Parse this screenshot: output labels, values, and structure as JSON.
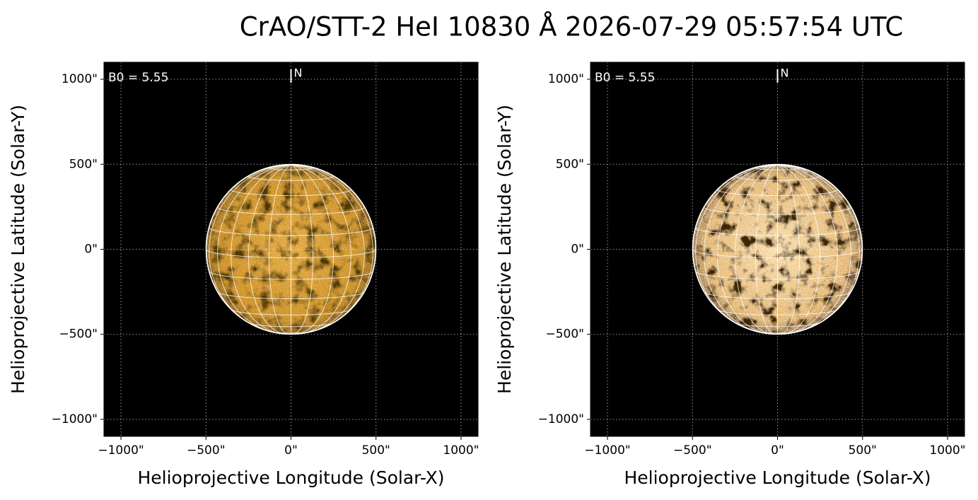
{
  "title": "CrAO/STT-2 HeI 10830 Å 2026-07-29 05:57:54 UTC",
  "chart_data": [
    {
      "type": "solar-image",
      "style": "dark-contrast",
      "x_label": "Helioprojective Longitude (Solar-X)",
      "y_label": "Helioprojective Latitude (Solar-Y)",
      "annotation": "B0 = 5.55",
      "north_marker": "N",
      "xlim": [
        -1100,
        1100
      ],
      "ylim": [
        -1100,
        1100
      ],
      "xticks": [
        {
          "value": -1000,
          "label": "−1000\""
        },
        {
          "value": -500,
          "label": "−500\""
        },
        {
          "value": 0,
          "label": "0\""
        },
        {
          "value": 500,
          "label": "500\""
        },
        {
          "value": 1000,
          "label": "1000\""
        }
      ],
      "yticks": [
        {
          "value": -1000,
          "label": "−1000\""
        },
        {
          "value": -500,
          "label": "−500\""
        },
        {
          "value": 0,
          "label": "0\""
        },
        {
          "value": 500,
          "label": "500\""
        },
        {
          "value": 1000,
          "label": "1000\""
        }
      ],
      "grid": true
    },
    {
      "type": "solar-image",
      "style": "high-contrast",
      "x_label": "Helioprojective Longitude (Solar-X)",
      "y_label": "Helioprojective Latitude (Solar-Y)",
      "annotation": "B0 = 5.55",
      "north_marker": "N",
      "xlim": [
        -1100,
        1100
      ],
      "ylim": [
        -1100,
        1100
      ],
      "xticks": [
        {
          "value": -1000,
          "label": "−1000\""
        },
        {
          "value": -500,
          "label": "−500\""
        },
        {
          "value": 0,
          "label": "0\""
        },
        {
          "value": 500,
          "label": "500\""
        },
        {
          "value": 1000,
          "label": "1000\""
        }
      ],
      "yticks": [
        {
          "value": -1000,
          "label": "−1000\""
        },
        {
          "value": -500,
          "label": "−500\""
        },
        {
          "value": 0,
          "label": "0\""
        },
        {
          "value": 500,
          "label": "500\""
        },
        {
          "value": 1000,
          "label": "1000\""
        }
      ],
      "grid": true
    }
  ]
}
